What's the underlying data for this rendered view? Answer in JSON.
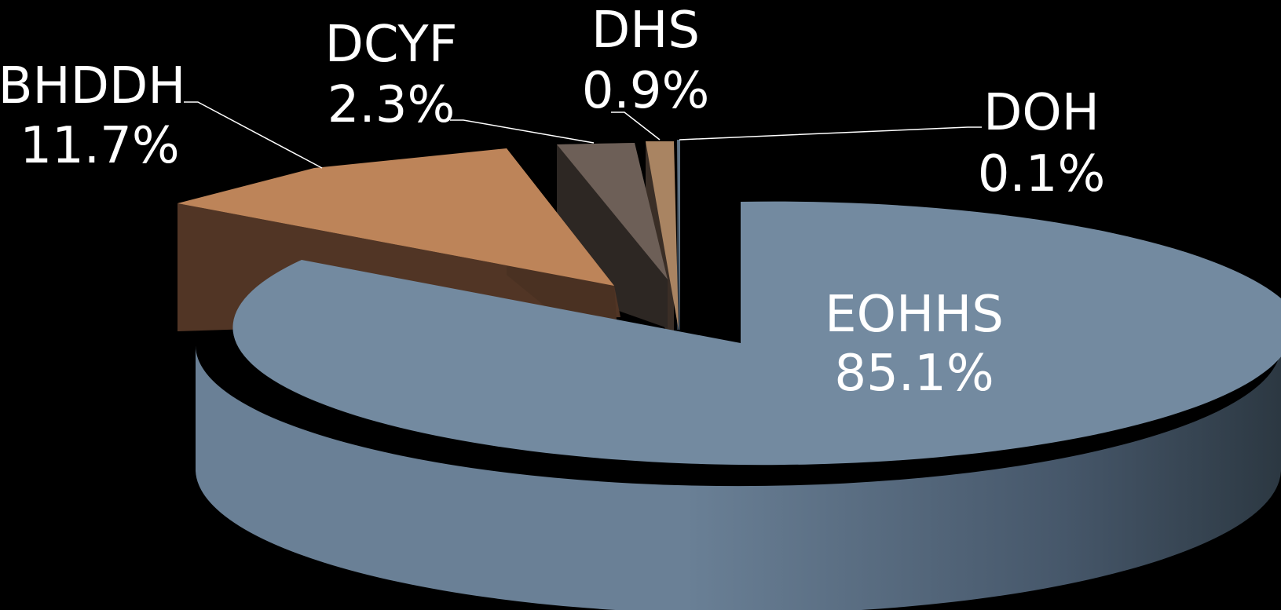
{
  "chart_data": {
    "type": "pie",
    "style": "3d-exploded",
    "title": "",
    "slices": [
      {
        "name": "EOHHS",
        "value": 85.1,
        "label": "85.1%",
        "color": "#738aa0"
      },
      {
        "name": "BHDDH",
        "value": 11.7,
        "label": "11.7%",
        "color": "#bd8459"
      },
      {
        "name": "DCYF",
        "value": 2.3,
        "label": "2.3%",
        "color": "#6d5f57"
      },
      {
        "name": "DHS",
        "value": 0.9,
        "label": "0.9%",
        "color": "#a98462"
      },
      {
        "name": "DOH",
        "value": 0.1,
        "label": "0.1%",
        "color": "#5f7283"
      }
    ],
    "legend": "none",
    "data_labels": "category name and percentage"
  }
}
